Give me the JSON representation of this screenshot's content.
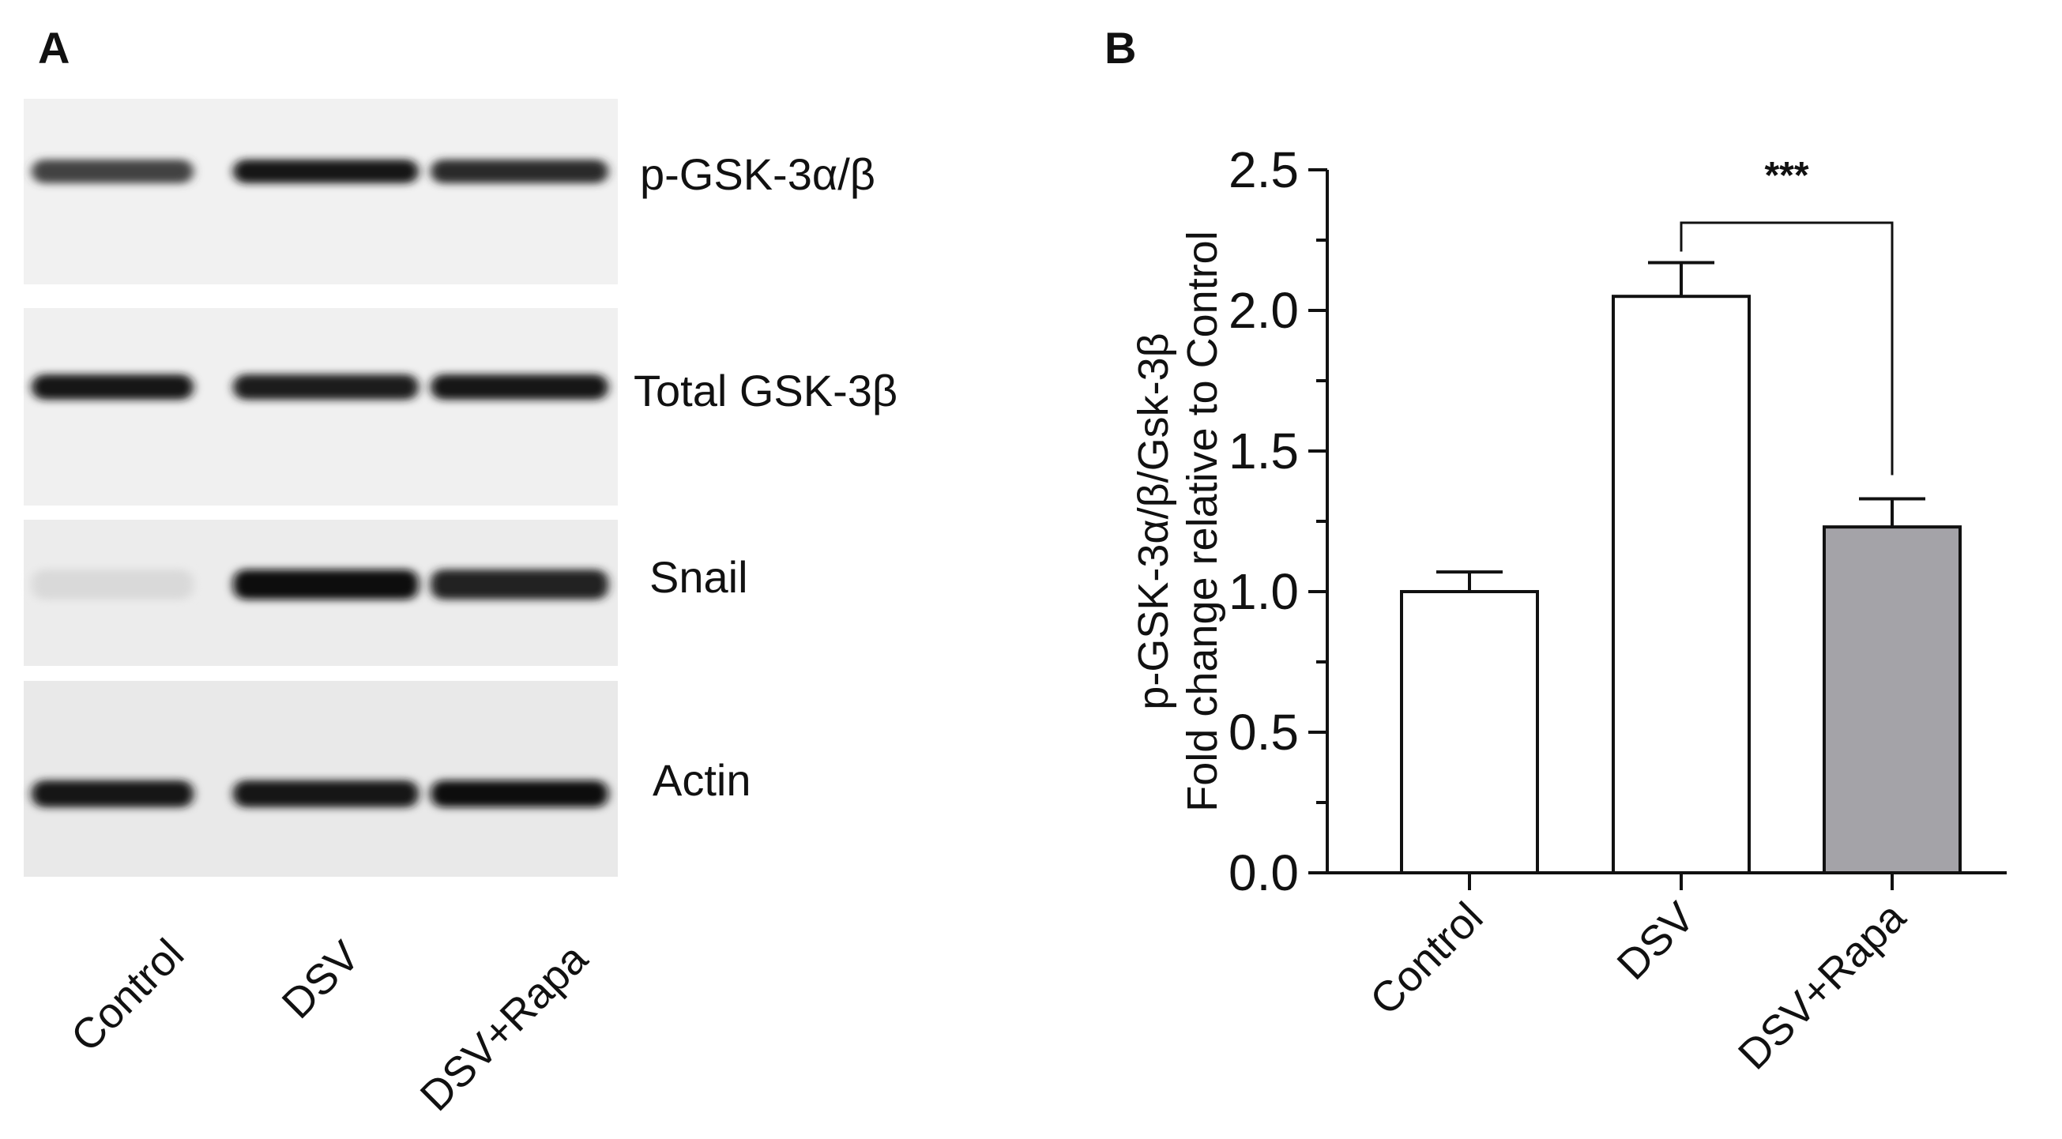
{
  "panels": {
    "a": {
      "letter": "A"
    },
    "b": {
      "letter": "B"
    }
  },
  "blot": {
    "rows": [
      {
        "label": "p-GSK-3α/β",
        "intensity": [
          0.75,
          0.95,
          0.85
        ]
      },
      {
        "label": "Total GSK-3β",
        "intensity": [
          0.95,
          0.92,
          0.95
        ]
      },
      {
        "label": "Snail",
        "intensity": [
          0.08,
          1.0,
          0.9
        ]
      },
      {
        "label": "Actin",
        "intensity": [
          0.95,
          0.95,
          1.0
        ]
      }
    ],
    "lanes": [
      "Control",
      "DSV",
      "DSV+Rapa"
    ]
  },
  "chart_data": {
    "type": "bar",
    "categories": [
      "Control",
      "DSV",
      "DSV+Rapa"
    ],
    "values": [
      1.0,
      2.05,
      1.23
    ],
    "errors": [
      0.07,
      0.12,
      0.1
    ],
    "bar_colors": [
      "#ffffff",
      "#ffffff",
      "#a4a3a8"
    ],
    "ylabel_line1": "p-GSK-3α/β/Gsk-3β",
    "ylabel_line2": "Fold change relative to Control",
    "ylim": [
      0,
      2.5
    ],
    "yticks": [
      "0.0",
      "0.5",
      "1.0",
      "1.5",
      "2.0",
      "2.5"
    ],
    "significance": {
      "from": "DSV",
      "to": "DSV+Rapa",
      "label": "***"
    }
  }
}
